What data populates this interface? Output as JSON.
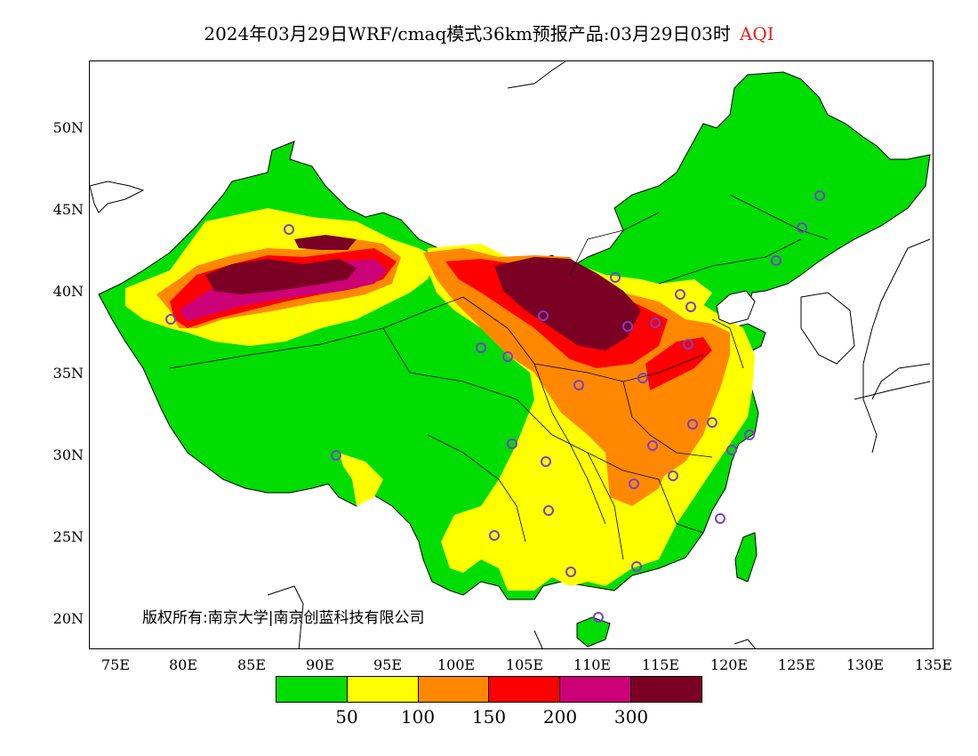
{
  "title": {
    "main": "2024年03月29日WRF/cmaq模式36km预报产品:03月29日03时",
    "pollutant": "AQI"
  },
  "axes": {
    "y_ticks": [
      "50N",
      "45N",
      "40N",
      "35N",
      "30N",
      "25N",
      "20N"
    ],
    "x_ticks": [
      "75E",
      "80E",
      "85E",
      "90E",
      "95E",
      "100E",
      "105E",
      "110E",
      "115E",
      "120E",
      "125E",
      "130E",
      "135E"
    ]
  },
  "copyright": "版权所有:南京大学|南京创蓝科技有限公司",
  "legend": {
    "colors": [
      "#00dd00",
      "#ffff00",
      "#ff8800",
      "#ff0000",
      "#cc0077",
      "#7a0024"
    ],
    "thresholds": [
      "50",
      "100",
      "150",
      "200",
      "300"
    ]
  },
  "map": {
    "land_color": "#00dd00",
    "boundary_color": "#000000",
    "station_marker_color": "#7a3fcf"
  }
}
